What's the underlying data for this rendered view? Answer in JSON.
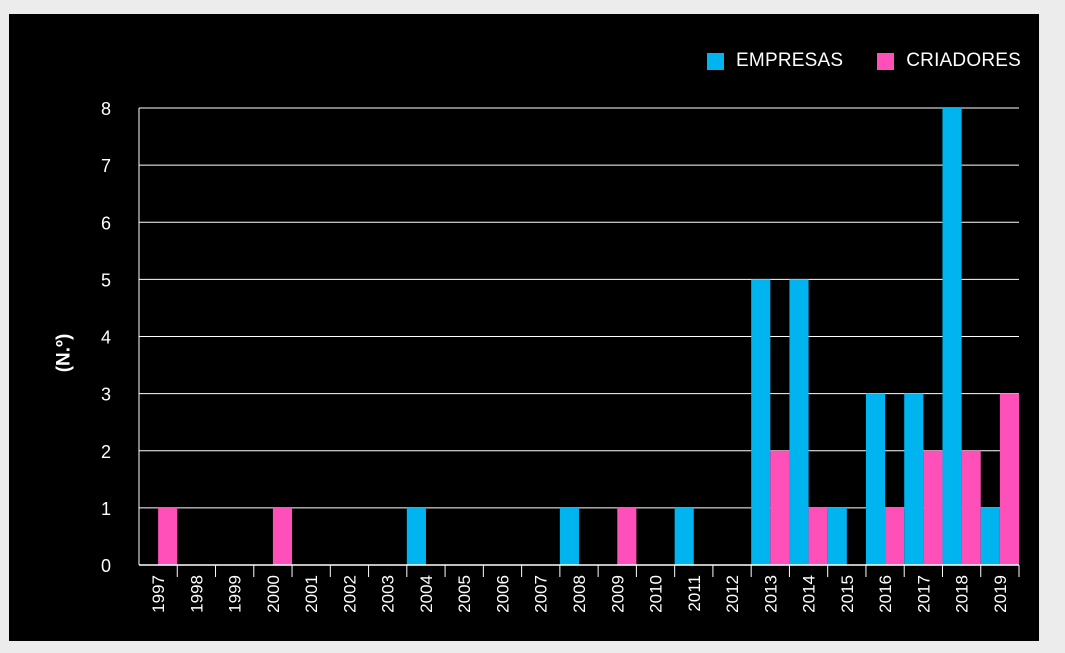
{
  "chart_data": {
    "type": "bar",
    "title": "",
    "xlabel": "",
    "ylabel": "(N.º)",
    "ylim": [
      0,
      8
    ],
    "yticks": [
      "0",
      "1",
      "2",
      "3",
      "4",
      "5",
      "6",
      "7",
      "8"
    ],
    "grid": true,
    "legend_position": "top-right",
    "categories": [
      "1997",
      "1998",
      "1999",
      "2000",
      "2001",
      "2002",
      "2003",
      "2004",
      "2005",
      "2006",
      "2007",
      "2008",
      "2009",
      "2010",
      "2011",
      "2012",
      "2013",
      "2014",
      "2015",
      "2016",
      "2017",
      "2018",
      "2019"
    ],
    "series": [
      {
        "name": "EMPRESAS",
        "color": "#00b4f0",
        "values": [
          0,
          0,
          0,
          0,
          0,
          0,
          0,
          1,
          0,
          0,
          0,
          1,
          0,
          0,
          1,
          0,
          5,
          5,
          1,
          3,
          3,
          8,
          1
        ]
      },
      {
        "name": "CRIADORES",
        "color": "#ff4fb8",
        "values": [
          1,
          0,
          0,
          1,
          0,
          0,
          0,
          0,
          0,
          0,
          0,
          0,
          1,
          0,
          0,
          0,
          2,
          1,
          0,
          1,
          2,
          2,
          3
        ]
      }
    ]
  },
  "colors": {
    "background": "#000000",
    "outer_background": "#ececec",
    "gridline": "#ffffff",
    "text": "#ffffff"
  }
}
